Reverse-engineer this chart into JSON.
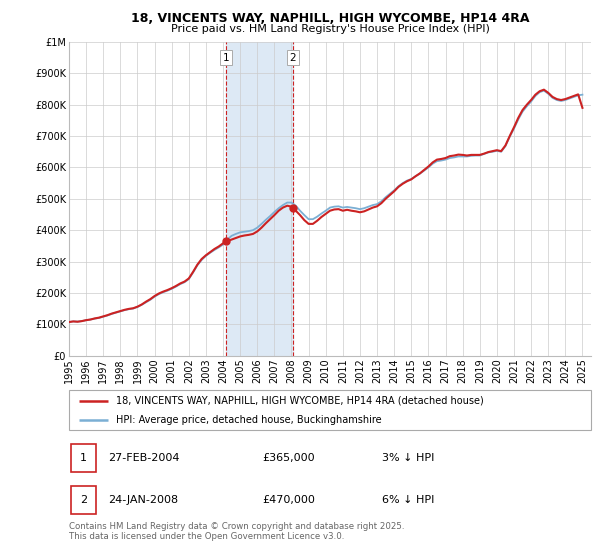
{
  "title_line1": "18, VINCENTS WAY, NAPHILL, HIGH WYCOMBE, HP14 4RA",
  "title_line2": "Price paid vs. HM Land Registry's House Price Index (HPI)",
  "background_color": "#ffffff",
  "plot_bg_color": "#ffffff",
  "grid_color": "#cccccc",
  "hpi_color": "#7bafd4",
  "price_color": "#cc2222",
  "sale1_x": 2004.17,
  "sale2_x": 2008.08,
  "sale1_price": 365000,
  "sale2_price": 470000,
  "highlight_color": "#dde9f5",
  "legend_label1": "18, VINCENTS WAY, NAPHILL, HIGH WYCOMBE, HP14 4RA (detached house)",
  "legend_label2": "HPI: Average price, detached house, Buckinghamshire",
  "table_row1": [
    "1",
    "27-FEB-2004",
    "£365,000",
    "3% ↓ HPI"
  ],
  "table_row2": [
    "2",
    "24-JAN-2008",
    "£470,000",
    "6% ↓ HPI"
  ],
  "footer": "Contains HM Land Registry data © Crown copyright and database right 2025.\nThis data is licensed under the Open Government Licence v3.0.",
  "hpi_data": [
    [
      1995.0,
      107000
    ],
    [
      1995.25,
      109000
    ],
    [
      1995.5,
      108500
    ],
    [
      1995.75,
      110000
    ],
    [
      1996.0,
      113000
    ],
    [
      1996.25,
      115000
    ],
    [
      1996.5,
      118000
    ],
    [
      1996.75,
      120000
    ],
    [
      1997.0,
      124000
    ],
    [
      1997.25,
      128000
    ],
    [
      1997.5,
      133000
    ],
    [
      1997.75,
      137000
    ],
    [
      1998.0,
      141000
    ],
    [
      1998.25,
      145000
    ],
    [
      1998.5,
      148000
    ],
    [
      1998.75,
      150000
    ],
    [
      1999.0,
      155000
    ],
    [
      1999.25,
      162000
    ],
    [
      1999.5,
      170000
    ],
    [
      1999.75,
      178000
    ],
    [
      2000.0,
      188000
    ],
    [
      2000.25,
      196000
    ],
    [
      2000.5,
      202000
    ],
    [
      2000.75,
      207000
    ],
    [
      2001.0,
      213000
    ],
    [
      2001.25,
      220000
    ],
    [
      2001.5,
      228000
    ],
    [
      2001.75,
      234000
    ],
    [
      2002.0,
      244000
    ],
    [
      2002.25,
      265000
    ],
    [
      2002.5,
      288000
    ],
    [
      2002.75,
      305000
    ],
    [
      2003.0,
      318000
    ],
    [
      2003.25,
      328000
    ],
    [
      2003.5,
      337000
    ],
    [
      2003.75,
      345000
    ],
    [
      2004.0,
      354000
    ],
    [
      2004.25,
      370000
    ],
    [
      2004.5,
      382000
    ],
    [
      2004.75,
      388000
    ],
    [
      2005.0,
      393000
    ],
    [
      2005.25,
      395000
    ],
    [
      2005.5,
      397000
    ],
    [
      2005.75,
      400000
    ],
    [
      2006.0,
      408000
    ],
    [
      2006.25,
      420000
    ],
    [
      2006.5,
      433000
    ],
    [
      2006.75,
      445000
    ],
    [
      2007.0,
      458000
    ],
    [
      2007.25,
      470000
    ],
    [
      2007.5,
      480000
    ],
    [
      2007.75,
      488000
    ],
    [
      2008.0,
      488000
    ],
    [
      2008.25,
      478000
    ],
    [
      2008.5,
      462000
    ],
    [
      2008.75,
      448000
    ],
    [
      2009.0,
      435000
    ],
    [
      2009.25,
      435000
    ],
    [
      2009.5,
      443000
    ],
    [
      2009.75,
      453000
    ],
    [
      2010.0,
      462000
    ],
    [
      2010.25,
      472000
    ],
    [
      2010.5,
      475000
    ],
    [
      2010.75,
      476000
    ],
    [
      2011.0,
      472000
    ],
    [
      2011.25,
      474000
    ],
    [
      2011.5,
      472000
    ],
    [
      2011.75,
      470000
    ],
    [
      2012.0,
      467000
    ],
    [
      2012.25,
      470000
    ],
    [
      2012.5,
      475000
    ],
    [
      2012.75,
      480000
    ],
    [
      2013.0,
      483000
    ],
    [
      2013.25,
      492000
    ],
    [
      2013.5,
      505000
    ],
    [
      2013.75,
      516000
    ],
    [
      2014.0,
      527000
    ],
    [
      2014.25,
      540000
    ],
    [
      2014.5,
      550000
    ],
    [
      2014.75,
      558000
    ],
    [
      2015.0,
      563000
    ],
    [
      2015.25,
      572000
    ],
    [
      2015.5,
      580000
    ],
    [
      2015.75,
      590000
    ],
    [
      2016.0,
      600000
    ],
    [
      2016.25,
      612000
    ],
    [
      2016.5,
      620000
    ],
    [
      2016.75,
      622000
    ],
    [
      2017.0,
      625000
    ],
    [
      2017.25,
      630000
    ],
    [
      2017.5,
      632000
    ],
    [
      2017.75,
      635000
    ],
    [
      2018.0,
      635000
    ],
    [
      2018.25,
      635000
    ],
    [
      2018.5,
      637000
    ],
    [
      2018.75,
      638000
    ],
    [
      2019.0,
      638000
    ],
    [
      2019.25,
      643000
    ],
    [
      2019.5,
      648000
    ],
    [
      2019.75,
      650000
    ],
    [
      2020.0,
      653000
    ],
    [
      2020.25,
      650000
    ],
    [
      2020.5,
      668000
    ],
    [
      2020.75,
      698000
    ],
    [
      2021.0,
      724000
    ],
    [
      2021.25,
      753000
    ],
    [
      2021.5,
      778000
    ],
    [
      2021.75,
      795000
    ],
    [
      2022.0,
      810000
    ],
    [
      2022.25,
      828000
    ],
    [
      2022.5,
      840000
    ],
    [
      2022.75,
      845000
    ],
    [
      2023.0,
      835000
    ],
    [
      2023.25,
      822000
    ],
    [
      2023.5,
      815000
    ],
    [
      2023.75,
      812000
    ],
    [
      2024.0,
      815000
    ],
    [
      2024.25,
      820000
    ],
    [
      2024.5,
      825000
    ],
    [
      2024.75,
      830000
    ],
    [
      2025.0,
      832000
    ]
  ],
  "price_data": [
    [
      1995.0,
      107000
    ],
    [
      1995.25,
      109000
    ],
    [
      1995.5,
      108000
    ],
    [
      1995.75,
      110000
    ],
    [
      1996.0,
      113000
    ],
    [
      1996.25,
      115000
    ],
    [
      1996.5,
      118500
    ],
    [
      1996.75,
      121000
    ],
    [
      1997.0,
      125000
    ],
    [
      1997.25,
      129000
    ],
    [
      1997.5,
      134000
    ],
    [
      1997.75,
      138000
    ],
    [
      1998.0,
      142000
    ],
    [
      1998.25,
      146000
    ],
    [
      1998.5,
      149000
    ],
    [
      1998.75,
      151000
    ],
    [
      1999.0,
      156000
    ],
    [
      1999.25,
      163000
    ],
    [
      1999.5,
      172000
    ],
    [
      1999.75,
      180000
    ],
    [
      2000.0,
      190000
    ],
    [
      2000.25,
      198000
    ],
    [
      2000.5,
      204000
    ],
    [
      2000.75,
      209000
    ],
    [
      2001.0,
      215000
    ],
    [
      2001.25,
      222000
    ],
    [
      2001.5,
      230000
    ],
    [
      2001.75,
      236000
    ],
    [
      2002.0,
      246000
    ],
    [
      2002.25,
      267000
    ],
    [
      2002.5,
      290000
    ],
    [
      2002.75,
      308000
    ],
    [
      2003.0,
      320000
    ],
    [
      2003.25,
      330000
    ],
    [
      2003.5,
      340000
    ],
    [
      2003.75,
      348000
    ],
    [
      2004.0,
      358000
    ],
    [
      2004.25,
      365000
    ],
    [
      2004.5,
      370000
    ],
    [
      2004.75,
      375000
    ],
    [
      2005.0,
      380000
    ],
    [
      2005.25,
      383000
    ],
    [
      2005.5,
      385000
    ],
    [
      2005.75,
      388000
    ],
    [
      2006.0,
      396000
    ],
    [
      2006.25,
      408000
    ],
    [
      2006.5,
      422000
    ],
    [
      2006.75,
      435000
    ],
    [
      2007.0,
      448000
    ],
    [
      2007.25,
      462000
    ],
    [
      2007.5,
      472000
    ],
    [
      2007.75,
      478000
    ],
    [
      2008.0,
      475000
    ],
    [
      2008.25,
      462000
    ],
    [
      2008.5,
      448000
    ],
    [
      2008.75,
      432000
    ],
    [
      2009.0,
      420000
    ],
    [
      2009.25,
      420000
    ],
    [
      2009.5,
      430000
    ],
    [
      2009.75,
      442000
    ],
    [
      2010.0,
      452000
    ],
    [
      2010.25,
      462000
    ],
    [
      2010.5,
      466000
    ],
    [
      2010.75,
      467000
    ],
    [
      2011.0,
      462000
    ],
    [
      2011.25,
      465000
    ],
    [
      2011.5,
      462000
    ],
    [
      2011.75,
      460000
    ],
    [
      2012.0,
      457000
    ],
    [
      2012.25,
      460000
    ],
    [
      2012.5,
      466000
    ],
    [
      2012.75,
      472000
    ],
    [
      2013.0,
      476000
    ],
    [
      2013.25,
      486000
    ],
    [
      2013.5,
      500000
    ],
    [
      2013.75,
      512000
    ],
    [
      2014.0,
      524000
    ],
    [
      2014.25,
      538000
    ],
    [
      2014.5,
      548000
    ],
    [
      2014.75,
      556000
    ],
    [
      2015.0,
      562000
    ],
    [
      2015.25,
      572000
    ],
    [
      2015.5,
      581000
    ],
    [
      2015.75,
      592000
    ],
    [
      2016.0,
      603000
    ],
    [
      2016.25,
      616000
    ],
    [
      2016.5,
      625000
    ],
    [
      2016.75,
      627000
    ],
    [
      2017.0,
      630000
    ],
    [
      2017.25,
      636000
    ],
    [
      2017.5,
      638000
    ],
    [
      2017.75,
      641000
    ],
    [
      2018.0,
      640000
    ],
    [
      2018.25,
      638000
    ],
    [
      2018.5,
      640000
    ],
    [
      2018.75,
      640000
    ],
    [
      2019.0,
      640000
    ],
    [
      2019.25,
      644000
    ],
    [
      2019.5,
      649000
    ],
    [
      2019.75,
      652000
    ],
    [
      2020.0,
      655000
    ],
    [
      2020.25,
      652000
    ],
    [
      2020.5,
      670000
    ],
    [
      2020.75,
      700000
    ],
    [
      2021.0,
      728000
    ],
    [
      2021.25,
      758000
    ],
    [
      2021.5,
      783000
    ],
    [
      2021.75,
      800000
    ],
    [
      2022.0,
      815000
    ],
    [
      2022.25,
      832000
    ],
    [
      2022.5,
      843000
    ],
    [
      2022.75,
      848000
    ],
    [
      2023.0,
      838000
    ],
    [
      2023.25,
      825000
    ],
    [
      2023.5,
      818000
    ],
    [
      2023.75,
      815000
    ],
    [
      2024.0,
      818000
    ],
    [
      2024.25,
      823000
    ],
    [
      2024.5,
      828000
    ],
    [
      2024.75,
      833000
    ],
    [
      2025.0,
      790000
    ]
  ],
  "xmin": 1995.0,
  "xmax": 2025.5,
  "ymin": 0,
  "ymax": 1000000,
  "yticks": [
    0,
    100000,
    200000,
    300000,
    400000,
    500000,
    600000,
    700000,
    800000,
    900000,
    1000000
  ],
  "ytick_labels": [
    "£0",
    "£100K",
    "£200K",
    "£300K",
    "£400K",
    "£500K",
    "£600K",
    "£700K",
    "£800K",
    "£900K",
    "£1M"
  ],
  "xticks": [
    1995,
    1996,
    1997,
    1998,
    1999,
    2000,
    2001,
    2002,
    2003,
    2004,
    2005,
    2006,
    2007,
    2008,
    2009,
    2010,
    2011,
    2012,
    2013,
    2014,
    2015,
    2016,
    2017,
    2018,
    2019,
    2020,
    2021,
    2022,
    2023,
    2024,
    2025
  ]
}
